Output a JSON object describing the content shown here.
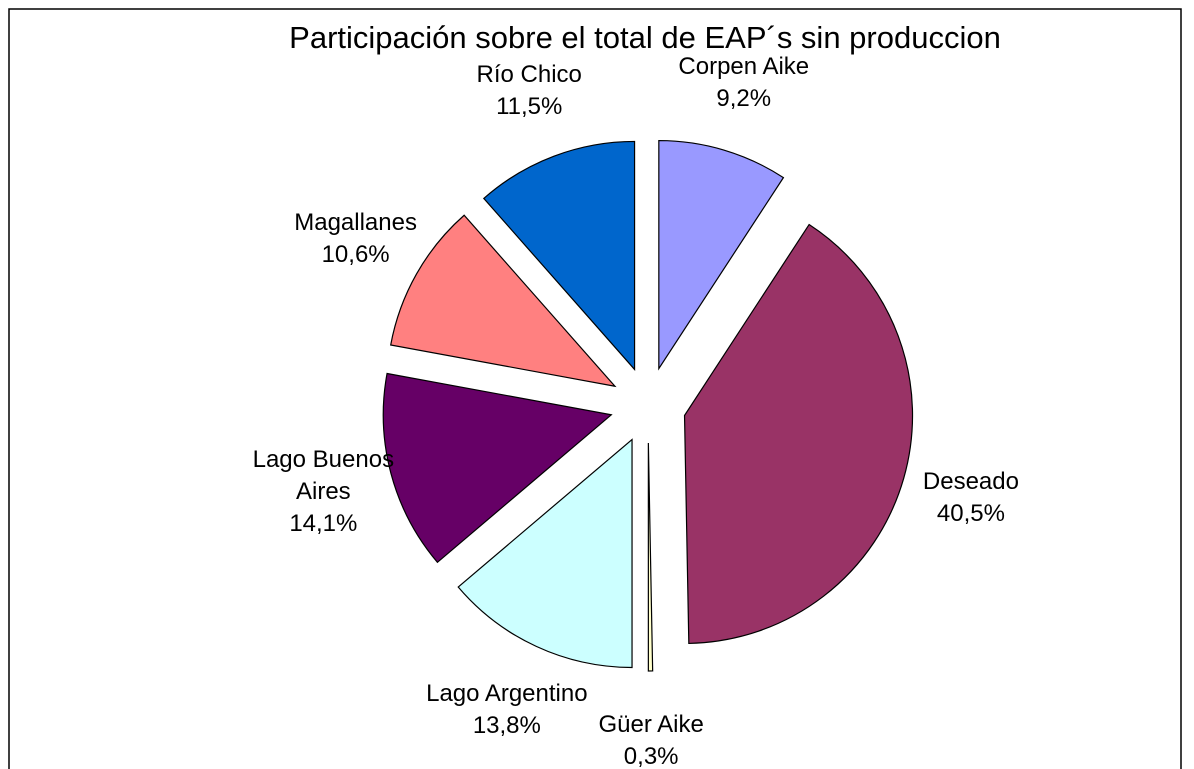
{
  "chart_data": {
    "type": "pie",
    "title": "Participación sobre el total de EAP´s sin produccion",
    "categories": [
      "Corpen Aike",
      "Deseado",
      "Güer Aike",
      "Lago Argentino",
      "Lago Buenos Aires",
      "Magallanes",
      "Río Chico"
    ],
    "values": [
      9.2,
      40.5,
      0.3,
      13.8,
      14.1,
      10.6,
      11.5
    ],
    "value_labels": [
      "9,2%",
      "40,5%",
      "0,3%",
      "13,8%",
      "14,1%",
      "10,6%",
      "11,5%"
    ],
    "colors": [
      "#9999ff",
      "#993366",
      "#ffffcc",
      "#ccffff",
      "#660066",
      "#ff8080",
      "#0066cc"
    ]
  }
}
